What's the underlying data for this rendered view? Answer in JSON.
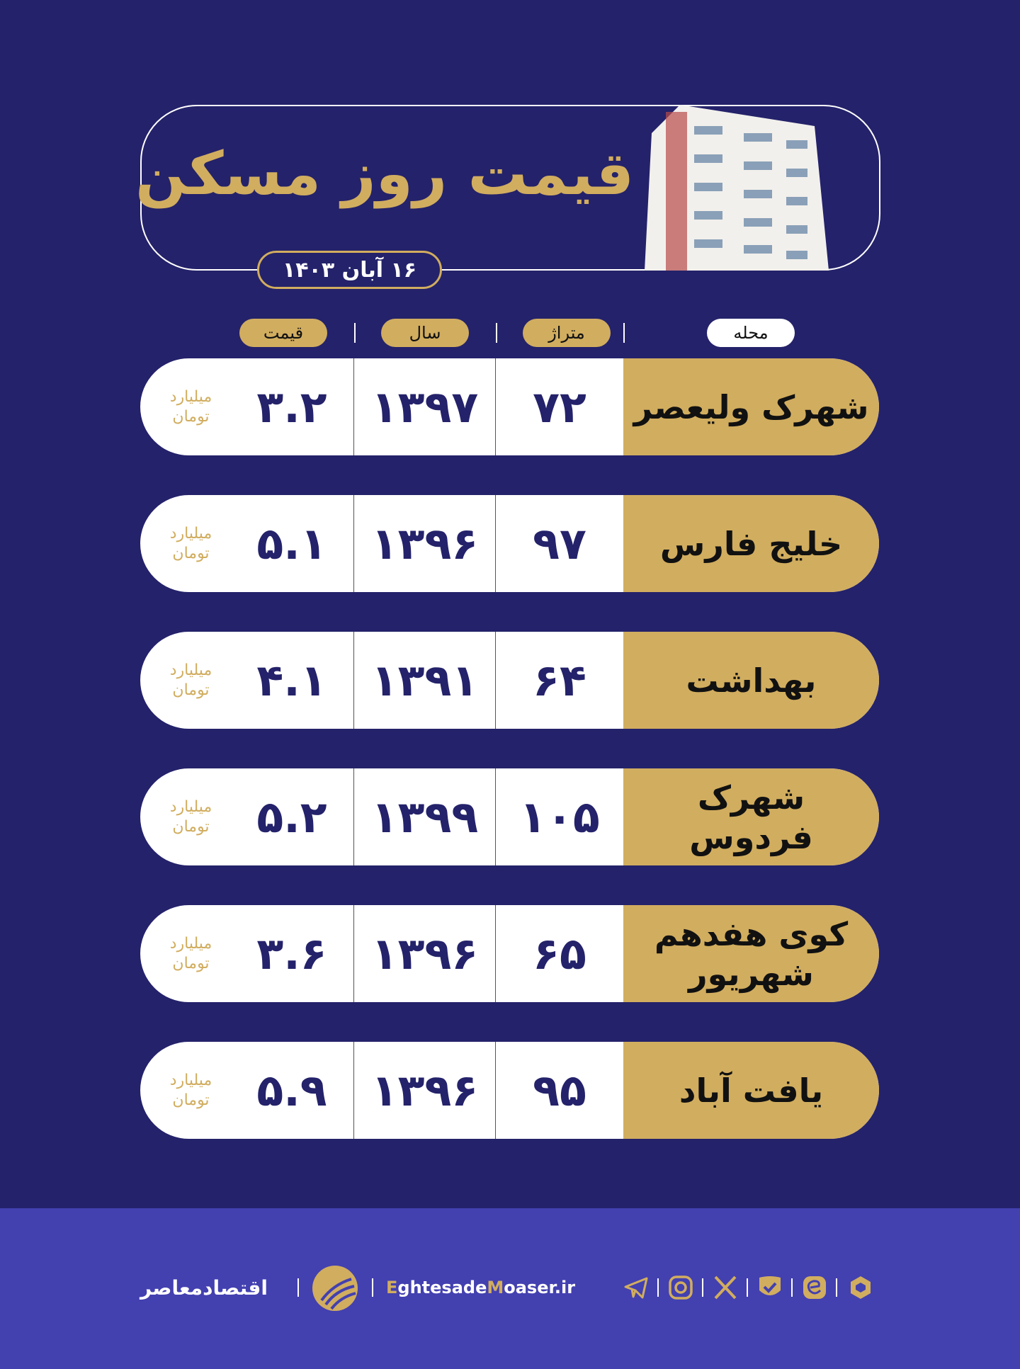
{
  "header": {
    "title": "قیمت روز مسکن",
    "date": "۱۶ آبان ۱۴۰۳"
  },
  "columns": {
    "price": "قیمت",
    "year": "سال",
    "area": "متراژ",
    "neighborhood": "محله"
  },
  "unit": {
    "line1": "میلیارد",
    "line2": "تومان"
  },
  "rows": [
    {
      "name": "شهرک ولیعصر",
      "area": "۷۲",
      "year": "۱۳۹۷",
      "price": "۳.۲"
    },
    {
      "name": "خلیج فارس",
      "area": "۹۷",
      "year": "۱۳۹۶",
      "price": "۵.۱"
    },
    {
      "name": "بهداشت",
      "area": "۶۴",
      "year": "۱۳۹۱",
      "price": "۴.۱"
    },
    {
      "name": "شهرک فردوس",
      "area": "۱۰۵",
      "year": "۱۳۹۹",
      "price": "۵.۲"
    },
    {
      "name": "کوی هفدهم شهریور",
      "area": "۶۵",
      "year": "۱۳۹۶",
      "price": "۳.۶"
    },
    {
      "name": "یافت آباد",
      "area": "۹۵",
      "year": "۱۳۹۶",
      "price": "۵.۹"
    }
  ],
  "footer": {
    "brand": "اقتصادمعاصر",
    "site_e": "E",
    "site_1": "ghtesade",
    "site_m": "M",
    "site_2": "oaser.ir",
    "icons": [
      "telegram-icon",
      "instagram-icon",
      "x-icon",
      "verified-icon",
      "eitaa-icon",
      "rubika-icon"
    ]
  },
  "colors": {
    "background": "#24226a",
    "gold": "#d1ad5f",
    "footer": "#4340b0"
  }
}
